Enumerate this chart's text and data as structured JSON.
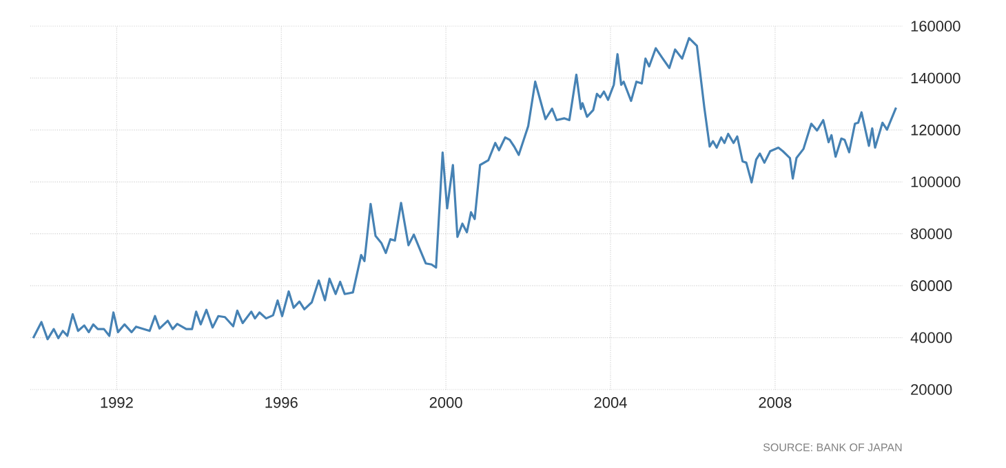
{
  "chart_data": {
    "type": "line",
    "x": [
      1989.97,
      1990.17,
      1990.32,
      1990.47,
      1990.58,
      1990.69,
      1990.8,
      1990.93,
      1991.06,
      1991.21,
      1991.32,
      1991.43,
      1991.54,
      1991.69,
      1991.82,
      1991.92,
      1992.03,
      1992.19,
      1992.36,
      1992.47,
      1992.8,
      1992.93,
      1993.04,
      1993.24,
      1993.36,
      1993.47,
      1993.69,
      1993.83,
      1993.93,
      1994.04,
      1994.18,
      1994.33,
      1994.47,
      1994.63,
      1994.83,
      1994.93,
      1995.06,
      1995.27,
      1995.36,
      1995.47,
      1995.63,
      1995.8,
      1995.91,
      1996.02,
      1996.18,
      1996.3,
      1996.44,
      1996.56,
      1996.74,
      1996.91,
      1997.06,
      1997.17,
      1997.32,
      1997.43,
      1997.54,
      1997.74,
      1997.94,
      1998.02,
      1998.17,
      1998.29,
      1998.43,
      1998.54,
      1998.65,
      1998.76,
      1998.91,
      1999.09,
      1999.22,
      1999.37,
      1999.51,
      1999.65,
      1999.76,
      1999.92,
      2000.03,
      2000.17,
      2000.28,
      2000.4,
      2000.51,
      2000.61,
      2000.7,
      2000.83,
      2001.03,
      2001.2,
      2001.29,
      2001.44,
      2001.55,
      2001.66,
      2001.77,
      2002.0,
      2002.17,
      2002.42,
      2002.58,
      2002.69,
      2002.88,
      2003.0,
      2003.17,
      2003.28,
      2003.32,
      2003.43,
      2003.58,
      2003.67,
      2003.75,
      2003.84,
      2003.94,
      2004.08,
      2004.17,
      2004.26,
      2004.32,
      2004.5,
      2004.63,
      2004.76,
      2004.85,
      2004.94,
      2005.1,
      2005.27,
      2005.43,
      2005.57,
      2005.74,
      2005.91,
      2006.1,
      2006.28,
      2006.41,
      2006.49,
      2006.58,
      2006.69,
      2006.77,
      2006.86,
      2006.99,
      2007.08,
      2007.21,
      2007.3,
      2007.43,
      2007.54,
      2007.63,
      2007.74,
      2007.88,
      2008.08,
      2008.19,
      2008.36,
      2008.43,
      2008.52,
      2008.69,
      2008.88,
      2009.02,
      2009.17,
      2009.3,
      2009.37,
      2009.47,
      2009.61,
      2009.69,
      2009.8,
      2009.94,
      2010.02,
      2010.1,
      2010.28,
      2010.36,
      2010.43,
      2010.61,
      2010.72,
      2010.94
    ],
    "series": [
      {
        "color": "#4682b4",
        "values": [
          39800,
          46000,
          39400,
          43300,
          39800,
          42600,
          40700,
          49000,
          42600,
          44700,
          42100,
          45100,
          43300,
          43300,
          40700,
          49700,
          42100,
          45100,
          42100,
          44200,
          42600,
          48300,
          43500,
          46500,
          43300,
          45300,
          43300,
          43300,
          50000,
          45100,
          50700,
          43900,
          48300,
          47900,
          44400,
          50400,
          45600,
          50000,
          47400,
          49700,
          47400,
          48600,
          54300,
          48300,
          57800,
          51500,
          53900,
          50900,
          53600,
          62000,
          54400,
          62700,
          56800,
          61500,
          56800,
          57400,
          71800,
          69500,
          91500,
          79200,
          76500,
          72600,
          77900,
          77400,
          91900,
          75600,
          79700,
          73900,
          68600,
          68200,
          67000,
          111300,
          89800,
          106500,
          78800,
          83900,
          80600,
          88300,
          85700,
          106500,
          108300,
          115000,
          112200,
          117100,
          116200,
          113600,
          110400,
          121500,
          138600,
          124200,
          128200,
          123800,
          124500,
          123800,
          141300,
          128100,
          130300,
          125100,
          127700,
          133900,
          132600,
          134800,
          131600,
          137400,
          149200,
          137400,
          138600,
          131200,
          138600,
          137900,
          147500,
          144500,
          151500,
          147500,
          143900,
          151000,
          147500,
          155400,
          152400,
          128600,
          113600,
          115700,
          113200,
          117100,
          115000,
          118500,
          115000,
          117500,
          107900,
          107400,
          99800,
          108600,
          110900,
          107400,
          111800,
          113200,
          111800,
          109200,
          101300,
          109200,
          112700,
          122400,
          119800,
          123800,
          115300,
          118000,
          109700,
          116700,
          116200,
          111400,
          122400,
          122800,
          126800,
          113900,
          120600,
          113200,
          122800,
          120100,
          128600
        ]
      }
    ],
    "xlim": [
      1989.9,
      2011.1
    ],
    "ylim": [
      20000,
      160000
    ],
    "xticks": [
      1992,
      1996,
      2000,
      2004,
      2008
    ],
    "yticks": [
      20000,
      40000,
      60000,
      80000,
      100000,
      120000,
      140000,
      160000
    ],
    "grid": true,
    "line_style": "solid",
    "annotations": [
      "SOURCE: BANK OF JAPAN"
    ]
  }
}
